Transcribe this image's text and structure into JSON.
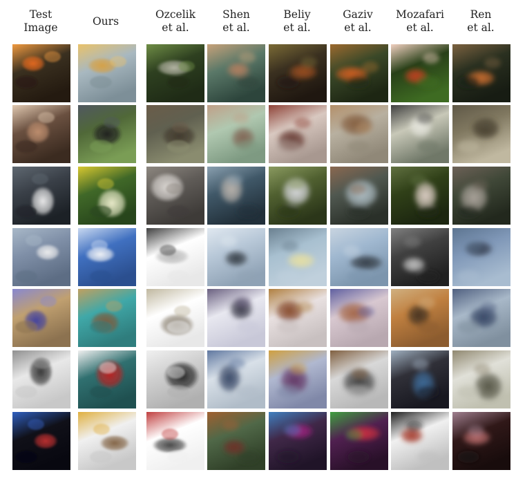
{
  "columns": [
    {
      "line1": "Test",
      "line2": "Image"
    },
    {
      "line1": "Ours",
      "line2": ""
    },
    {
      "line1": "Ozcelik",
      "line2": "et al."
    },
    {
      "line1": "Shen",
      "line2": "et al."
    },
    {
      "line1": "Beliy",
      "line2": "et al."
    },
    {
      "line1": "Gaziv",
      "line2": "et al."
    },
    {
      "line1": "Mozafari",
      "line2": "et al."
    },
    {
      "line1": "Ren",
      "line2": "et al."
    }
  ],
  "rows": [
    {
      "subject": "goldfish",
      "colors": [
        [
          "#3a3020",
          "#e86a1e",
          "#241a10",
          "#f09a40"
        ],
        [
          "#a8b8c0",
          "#d8a040",
          "#7d8f98",
          "#e9c26a"
        ],
        [
          "#2e4020",
          "#b8b8a8",
          "#1f2b16",
          "#6f8d46"
        ],
        [
          "#5a7868",
          "#b88060",
          "#2d453c",
          "#c7a27a"
        ],
        [
          "#3a3020",
          "#a05020",
          "#1f1710",
          "#7b6b36"
        ],
        [
          "#3a4828",
          "#d86020",
          "#1d2613",
          "#9c6a2f"
        ],
        [
          "#284018",
          "#c84020",
          "#3e6b22",
          "#f0d0c0"
        ],
        [
          "#2a3020",
          "#d07030",
          "#171c13",
          "#7c6240"
        ]
      ]
    },
    {
      "subject": "primate",
      "colors": [
        [
          "#6a5040",
          "#c09070",
          "#3b2b20",
          "#e0c8b0"
        ],
        [
          "#506838",
          "#202020",
          "#7a9d55",
          "#505860"
        ],
        [
          "#606050",
          "#40382c",
          "#8a8c6f",
          "#6a5c49"
        ],
        [
          "#b0c8b0",
          "#806050",
          "#7e9a82",
          "#c0a088"
        ],
        [
          "#d8c8c0",
          "#603028",
          "#a89890",
          "#8f4338"
        ],
        [
          "#b8b0a0",
          "#805838",
          "#908878",
          "#b4906a"
        ],
        [
          "#c8c8b8",
          "#e8e8e0",
          "#707868",
          "#404040"
        ],
        [
          "#807860",
          "#403828",
          "#c0b8a0",
          "#5f5847"
        ]
      ]
    },
    {
      "subject": "bird",
      "colors": [
        [
          "#3a4048",
          "#f0f0f0",
          "#1c2126",
          "#5f6871"
        ],
        [
          "#406828",
          "#f0f0d0",
          "#27451b",
          "#d8c830"
        ],
        [
          "#605c58",
          "#e0dcd8",
          "#3e3b38",
          "#8d8780"
        ],
        [
          "#405868",
          "#c0b8b0",
          "#22303a",
          "#8aa0b0"
        ],
        [
          "#506030",
          "#e0e0e8",
          "#2b3619",
          "#8a9a60"
        ],
        [
          "#505850",
          "#b8c8d0",
          "#2a3029",
          "#8a6850"
        ],
        [
          "#304018",
          "#e8d8d0",
          "#1c2610",
          "#607040"
        ],
        [
          "#404838",
          "#b0a8a0",
          "#22281d",
          "#6d6157"
        ]
      ]
    },
    {
      "subject": "airplane",
      "colors": [
        [
          "#8090a8",
          "#f0f0f0",
          "#5d6d84",
          "#a8b8c8"
        ],
        [
          "#4070c0",
          "#f8f8f8",
          "#2b4f8f",
          "#c8d8f0"
        ],
        [
          "#ffffff",
          "#b8b8b8",
          "#e8e8e8",
          "#404040"
        ],
        [
          "#b8c8d8",
          "#303840",
          "#8fa2b5",
          "#e0e8f0"
        ],
        [
          "#a8c0d0",
          "#e8e0a0",
          "#c0d0dc",
          "#6a8090"
        ],
        [
          "#a0b8d0",
          "#303840",
          "#7c95ad",
          "#c8d4e0"
        ],
        [
          "#404040",
          "#c8c8c8",
          "#202020",
          "#808080"
        ],
        [
          "#8098b8",
          "#303848",
          "#a8bcd0",
          "#5d7591"
        ]
      ]
    },
    {
      "subject": "sphere",
      "colors": [
        [
          "#c0a070",
          "#4040a0",
          "#8c7250",
          "#8888d0"
        ],
        [
          "#40a8a8",
          "#805838",
          "#2f7d7d",
          "#c0a060"
        ],
        [
          "#ffffff",
          "#8a8070",
          "#e8e8e8",
          "#c0b8a0"
        ],
        [
          "#e8e8f0",
          "#303040",
          "#c8c8d8",
          "#6a6080"
        ],
        [
          "#e8e0e0",
          "#804020",
          "#c8c0c0",
          "#b08040"
        ],
        [
          "#d8c8d0",
          "#a06040",
          "#b8a8b0",
          "#6060a0"
        ],
        [
          "#c08040",
          "#403020",
          "#8c5c2f",
          "#d0b080"
        ],
        [
          "#a8b8c8",
          "#304060",
          "#80909f",
          "#506080"
        ]
      ]
    },
    {
      "subject": "vehicle",
      "colors": [
        [
          "#e8e8e8",
          "#303030",
          "#c8c8c8",
          "#909090"
        ],
        [
          "#307070",
          "#c02020",
          "#1f5050",
          "#f0f0f0"
        ],
        [
          "#d0d0d0",
          "#202020",
          "#b0b0b0",
          "#f0f0f0"
        ],
        [
          "#d8e0e8",
          "#304060",
          "#b0bcc8",
          "#6078a0"
        ],
        [
          "#b0b8d0",
          "#603060",
          "#8088a8",
          "#d0a040"
        ],
        [
          "#d8d8d8",
          "#383838",
          "#b8b8b8",
          "#806040"
        ],
        [
          "#303038",
          "#4070a0",
          "#181820",
          "#a0b0c0"
        ],
        [
          "#e0e0d8",
          "#505040",
          "#c0c0b0",
          "#908870"
        ]
      ]
    },
    {
      "subject": "stained-glass",
      "colors": [
        [
          "#101018",
          "#c03030",
          "#080810",
          "#3060c0"
        ],
        [
          "#f0f0f0",
          "#806040",
          "#c8c8c8",
          "#e0b040"
        ],
        [
          "#ffffff",
          "#404040",
          "#f0f0f0",
          "#c04040"
        ],
        [
          "#506848",
          "#703028",
          "#304028",
          "#a06030"
        ],
        [
          "#402848",
          "#a02080",
          "#201428",
          "#4080c0"
        ],
        [
          "#502050",
          "#d03040",
          "#281028",
          "#40a040"
        ],
        [
          "#f0f0f0",
          "#a03020",
          "#c0c0c0",
          "#202020"
        ],
        [
          "#301818",
          "#c07070",
          "#180c0c",
          "#a08090"
        ]
      ]
    }
  ]
}
